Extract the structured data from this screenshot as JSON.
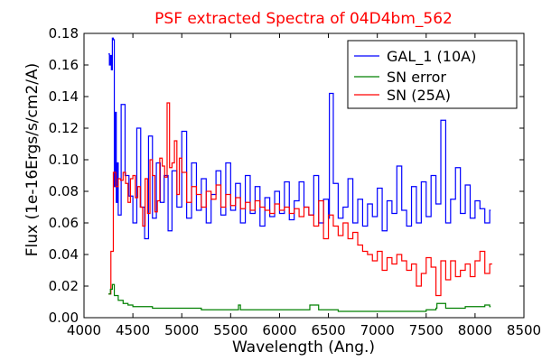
{
  "chart_data": {
    "type": "line",
    "title": "PSF extracted Spectra of 04D4bm_562",
    "xlabel": "Wavelength (Ang.)",
    "ylabel": "Flux (1e-16Ergs/s/cm2/A)",
    "xlim": [
      4000,
      8500
    ],
    "ylim": [
      0.0,
      0.18
    ],
    "xticks": [
      "4000",
      "4500",
      "5000",
      "5500",
      "6000",
      "6500",
      "7000",
      "7500",
      "8000",
      "8500"
    ],
    "yticks": [
      "0.00",
      "0.02",
      "0.04",
      "0.06",
      "0.08",
      "0.10",
      "0.12",
      "0.14",
      "0.16",
      "0.18"
    ],
    "grid": false,
    "legend_position": "top-right",
    "colors": {
      "title": "#ff0000",
      "gal": "#0000ff",
      "err": "#008000",
      "sn": "#ff0000"
    },
    "series": [
      {
        "name": "GAL_1 (10A)",
        "color": "#0000ff",
        "step": 10,
        "x": [
          4250,
          4260,
          4270,
          4280,
          4290,
          4300,
          4310,
          4320,
          4330,
          4340,
          4350,
          4380,
          4420,
          4460,
          4500,
          4540,
          4580,
          4620,
          4660,
          4700,
          4740,
          4780,
          4820,
          4860,
          4900,
          4950,
          5000,
          5050,
          5100,
          5150,
          5200,
          5250,
          5300,
          5350,
          5400,
          5450,
          5500,
          5550,
          5600,
          5650,
          5700,
          5750,
          5800,
          5850,
          5900,
          5950,
          6000,
          6050,
          6100,
          6150,
          6200,
          6250,
          6300,
          6350,
          6400,
          6450,
          6500,
          6510,
          6550,
          6600,
          6650,
          6700,
          6750,
          6800,
          6850,
          6900,
          6950,
          7000,
          7050,
          7100,
          7150,
          7200,
          7250,
          7300,
          7350,
          7400,
          7450,
          7500,
          7550,
          7600,
          7650,
          7700,
          7750,
          7800,
          7850,
          7900,
          7950,
          8000,
          8050,
          8100,
          8150
        ],
        "y": [
          0.167,
          0.16,
          0.166,
          0.157,
          0.177,
          0.176,
          0.083,
          0.13,
          0.073,
          0.098,
          0.065,
          0.135,
          0.09,
          0.077,
          0.06,
          0.12,
          0.07,
          0.05,
          0.115,
          0.063,
          0.098,
          0.073,
          0.09,
          0.055,
          0.093,
          0.07,
          0.118,
          0.063,
          0.098,
          0.068,
          0.088,
          0.06,
          0.078,
          0.093,
          0.065,
          0.098,
          0.068,
          0.085,
          0.06,
          0.09,
          0.066,
          0.083,
          0.058,
          0.076,
          0.064,
          0.08,
          0.066,
          0.086,
          0.062,
          0.074,
          0.086,
          0.07,
          0.065,
          0.09,
          0.06,
          0.075,
          0.063,
          0.142,
          0.085,
          0.063,
          0.07,
          0.088,
          0.06,
          0.075,
          0.058,
          0.072,
          0.064,
          0.082,
          0.055,
          0.074,
          0.066,
          0.096,
          0.068,
          0.058,
          0.083,
          0.06,
          0.086,
          0.064,
          0.09,
          0.072,
          0.125,
          0.06,
          0.075,
          0.095,
          0.066,
          0.084,
          0.063,
          0.074,
          0.069,
          0.06,
          0.068
        ]
      },
      {
        "name": "SN error",
        "color": "#008000",
        "step": 10,
        "x": [
          4250,
          4270,
          4290,
          4310,
          4350,
          4400,
          4450,
          4500,
          4600,
          4700,
          4800,
          4900,
          5000,
          5200,
          5400,
          5500,
          5560,
          5580,
          5600,
          5800,
          6000,
          6200,
          6300,
          6310,
          6400,
          6600,
          6800,
          7000,
          7200,
          7400,
          7500,
          7600,
          7610,
          7700,
          7800,
          7900,
          8000,
          8100,
          8150
        ],
        "y": [
          0.015,
          0.018,
          0.021,
          0.014,
          0.011,
          0.009,
          0.008,
          0.007,
          0.007,
          0.006,
          0.006,
          0.006,
          0.006,
          0.005,
          0.005,
          0.005,
          0.005,
          0.008,
          0.005,
          0.005,
          0.005,
          0.005,
          0.005,
          0.008,
          0.005,
          0.004,
          0.004,
          0.004,
          0.004,
          0.004,
          0.005,
          0.006,
          0.009,
          0.006,
          0.006,
          0.007,
          0.007,
          0.008,
          0.007
        ]
      },
      {
        "name": "SN (25A)",
        "color": "#ff0000",
        "step": 25,
        "x": [
          4250,
          4275,
          4300,
          4325,
          4350,
          4375,
          4400,
          4425,
          4450,
          4475,
          4500,
          4525,
          4550,
          4575,
          4600,
          4625,
          4650,
          4675,
          4700,
          4725,
          4750,
          4775,
          4800,
          4825,
          4850,
          4875,
          4900,
          4925,
          4950,
          4975,
          5000,
          5050,
          5100,
          5150,
          5200,
          5250,
          5300,
          5350,
          5400,
          5450,
          5500,
          5550,
          5600,
          5650,
          5700,
          5750,
          5800,
          5850,
          5900,
          5950,
          6000,
          6050,
          6100,
          6150,
          6200,
          6250,
          6300,
          6350,
          6400,
          6450,
          6500,
          6550,
          6600,
          6650,
          6700,
          6750,
          6800,
          6850,
          6900,
          6950,
          7000,
          7050,
          7100,
          7150,
          7200,
          7250,
          7300,
          7350,
          7400,
          7450,
          7500,
          7550,
          7600,
          7650,
          7700,
          7750,
          7800,
          7850,
          7900,
          7950,
          8000,
          8050,
          8100,
          8150
        ],
        "y": [
          0.015,
          0.042,
          0.092,
          0.083,
          0.088,
          0.087,
          0.092,
          0.085,
          0.073,
          0.088,
          0.09,
          0.076,
          0.083,
          0.07,
          0.058,
          0.088,
          0.066,
          0.1,
          0.09,
          0.067,
          0.074,
          0.101,
          0.096,
          0.089,
          0.136,
          0.095,
          0.098,
          0.112,
          0.078,
          0.101,
          0.092,
          0.073,
          0.083,
          0.078,
          0.07,
          0.08,
          0.075,
          0.084,
          0.07,
          0.078,
          0.071,
          0.076,
          0.069,
          0.073,
          0.068,
          0.074,
          0.07,
          0.068,
          0.066,
          0.072,
          0.068,
          0.07,
          0.066,
          0.069,
          0.064,
          0.07,
          0.065,
          0.058,
          0.074,
          0.05,
          0.065,
          0.058,
          0.052,
          0.06,
          0.05,
          0.054,
          0.046,
          0.042,
          0.04,
          0.036,
          0.042,
          0.03,
          0.038,
          0.034,
          0.04,
          0.036,
          0.03,
          0.034,
          0.02,
          0.028,
          0.038,
          0.032,
          0.014,
          0.036,
          0.024,
          0.036,
          0.026,
          0.03,
          0.034,
          0.026,
          0.036,
          0.042,
          0.028,
          0.034
        ]
      }
    ]
  }
}
